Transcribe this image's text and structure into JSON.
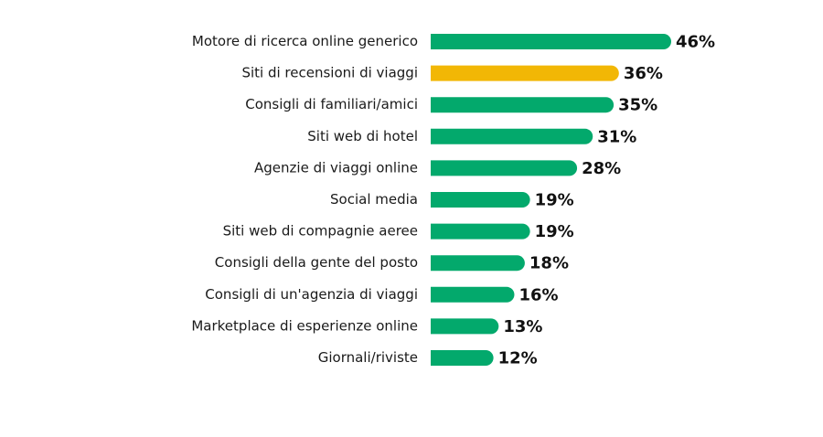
{
  "colors": {
    "default_bar": "#03A96C",
    "highlight_bar": "#F2B705",
    "label_text": "#1a1a1a",
    "value_text": "#111111"
  },
  "chart_data": {
    "type": "bar",
    "orientation": "horizontal",
    "title": "",
    "xlabel": "",
    "ylabel": "",
    "grid": false,
    "legend": "none",
    "value_suffix": "%",
    "xlim": [
      0,
      46
    ],
    "highlight_index": 1,
    "categories": [
      "Motore di ricerca online generico",
      "Siti di recensioni di viaggi",
      "Consigli di familiari/amici",
      "Siti web di hotel",
      "Agenzie di viaggi online",
      "Social media",
      "Siti web di compagnie aeree",
      "Consigli della gente del posto",
      "Consigli di un'agenzia di viaggi",
      "Marketplace di esperienze online",
      "Giornali/riviste"
    ],
    "values": [
      46,
      36,
      35,
      31,
      28,
      19,
      19,
      18,
      16,
      13,
      12
    ],
    "value_labels": [
      "46%",
      "36%",
      "35%",
      "31%",
      "28%",
      "19%",
      "19%",
      "18%",
      "16%",
      "13%",
      "12%"
    ]
  }
}
